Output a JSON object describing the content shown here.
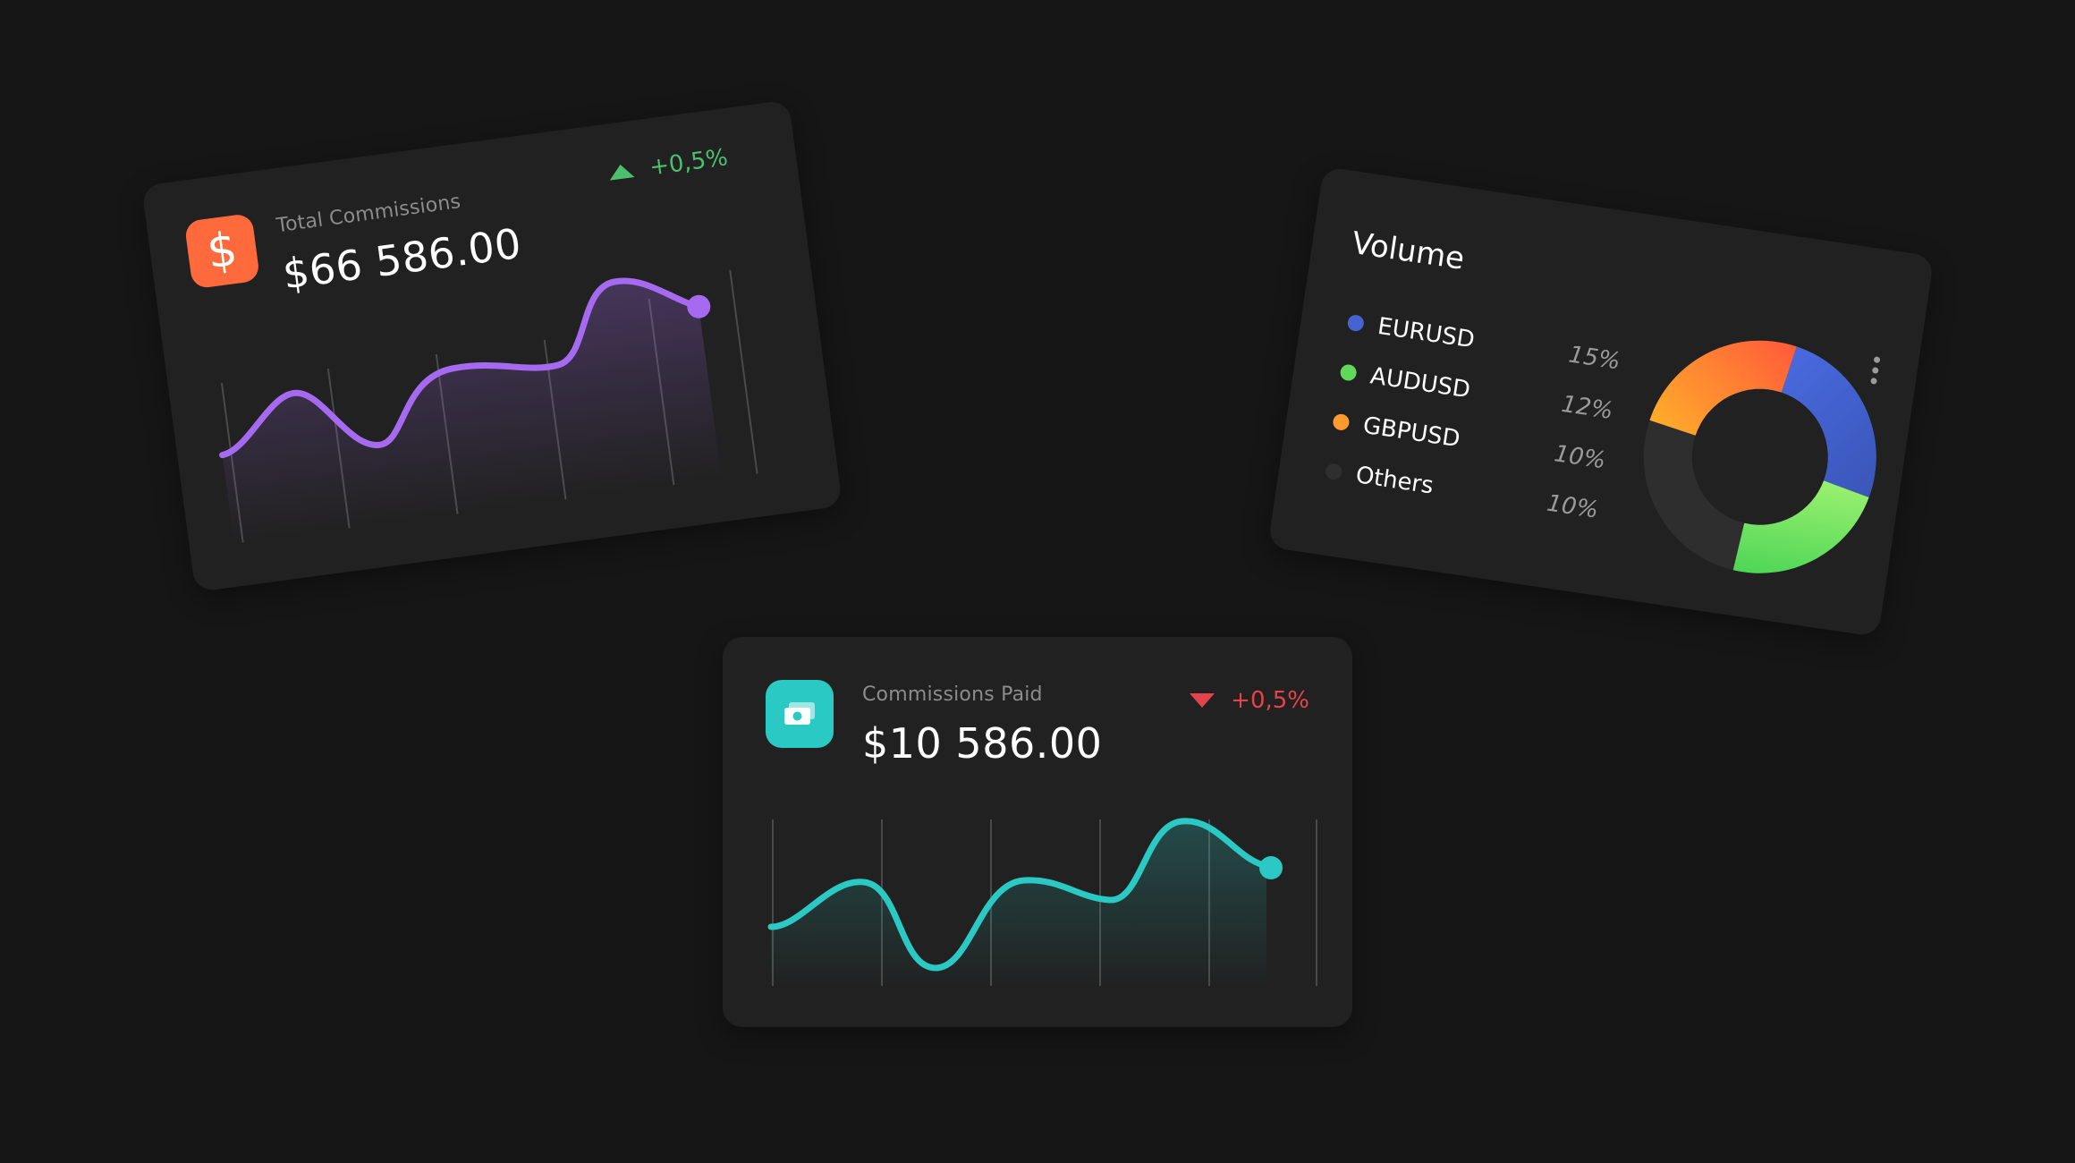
{
  "total_commissions": {
    "label": "Total Commissions",
    "amount": "$66 586.00",
    "change": "+0,5%",
    "icon": "dollar-icon",
    "accent": "#ff6a3d",
    "line_color": "#a66af0",
    "direction": "up",
    "change_color": "#4cbe6e"
  },
  "commissions_paid": {
    "label": "Commissions Paid",
    "amount": "$10 586.00",
    "change": "+0,5%",
    "icon": "money-icon",
    "accent": "#2bc9c4",
    "line_color": "#2bc9c4",
    "direction": "down",
    "change_color": "#e5434b"
  },
  "volume": {
    "title": "Volume",
    "menu_icon": "more-vertical-icon",
    "legend": [
      {
        "name": "EURUSD",
        "pct": "15%",
        "color": "#4663d4"
      },
      {
        "name": "AUDUSD",
        "pct": "12%",
        "color": "#5fd85c"
      },
      {
        "name": "GBPUSD",
        "pct": "10%",
        "color": "#ff9a2e"
      },
      {
        "name": "Others",
        "pct": "10%",
        "color": "#2f2f2f"
      }
    ]
  }
}
